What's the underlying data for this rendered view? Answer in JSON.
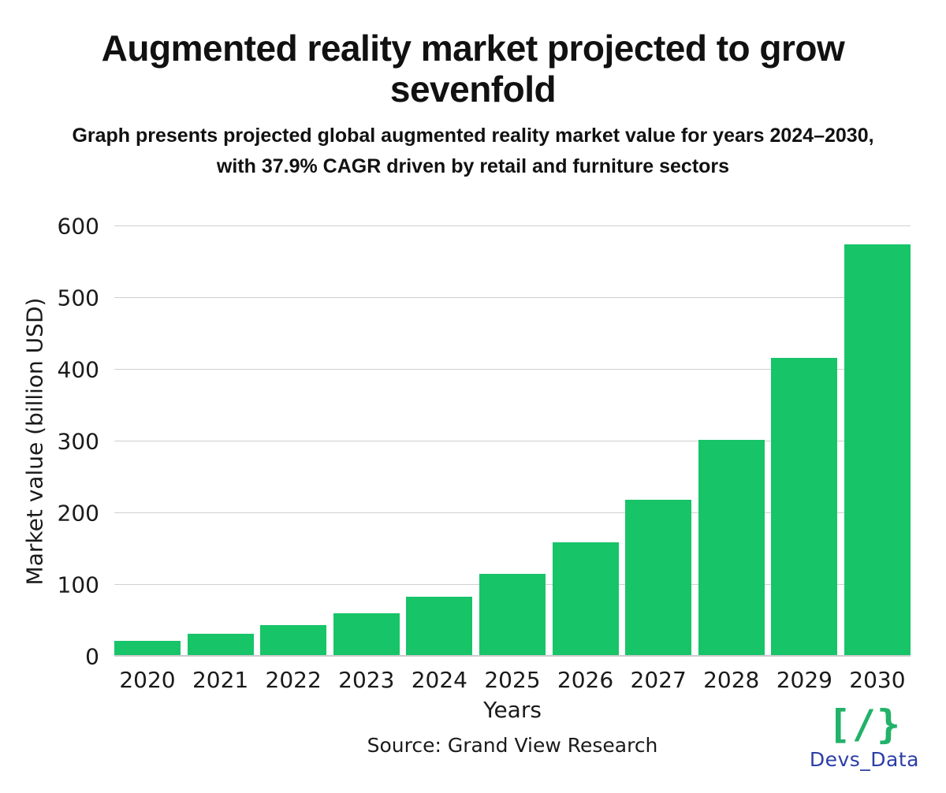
{
  "header": {
    "title": "Augmented reality market projected to grow sevenfold",
    "subtitle_line1": "Graph presents projected global augmented reality market value for years 2024–2030,",
    "subtitle_line2": "with 37.9% CAGR driven by retail and furniture sectors"
  },
  "chart_data": {
    "type": "bar",
    "title": "Augmented reality market projected to grow sevenfold",
    "categories": [
      "2020",
      "2021",
      "2022",
      "2023",
      "2024",
      "2025",
      "2026",
      "2027",
      "2028",
      "2029",
      "2030"
    ],
    "values": [
      22,
      32,
      44,
      60,
      84,
      115,
      159,
      219,
      302,
      417,
      575
    ],
    "xlabel": "Years",
    "ylabel": "Market value (billion USD)",
    "ylim": [
      0,
      600
    ],
    "yticks": [
      0,
      100,
      200,
      300,
      400,
      500,
      600
    ],
    "bar_color": "#17C468",
    "grid": "horizontal",
    "legend": "none"
  },
  "footer": {
    "source": "Source: Grand View Research",
    "logo": {
      "glyph": "[/}",
      "text": "Devs_Data",
      "glyph_color": "#22B269",
      "text_color": "#2B3EA7"
    }
  }
}
